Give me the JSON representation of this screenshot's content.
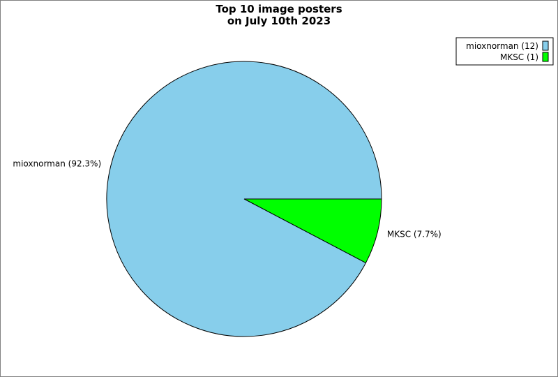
{
  "chart_data": {
    "type": "pie",
    "title": [
      "Top 10 image posters",
      "on July 10th 2023"
    ],
    "slices": [
      {
        "label": "mioxnorman",
        "value": 12,
        "percent": 92.3,
        "color": "#87ceeb",
        "legend": "mioxnorman (12)",
        "slice_label": "mioxnorman (92.3%)"
      },
      {
        "label": "MKSC",
        "value": 1,
        "percent": 7.7,
        "color": "#00ff00",
        "legend": "MKSC (1)",
        "slice_label": "MKSC (7.7%)"
      }
    ],
    "start_angle_deg": 0,
    "direction": "counterclockwise-from-right-with-last-slice-clockwise",
    "legend_position": "top-right"
  }
}
